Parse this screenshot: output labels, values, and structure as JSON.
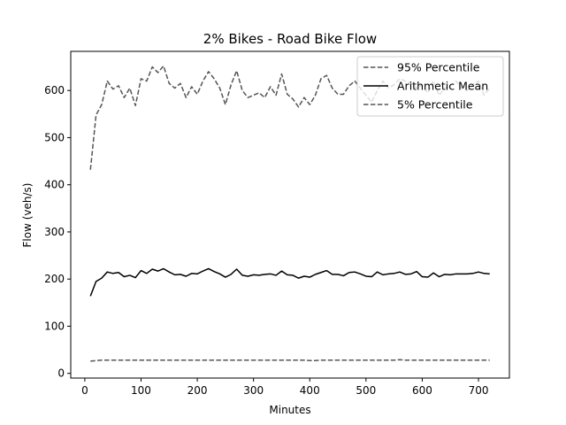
{
  "chart_data": {
    "type": "line",
    "title": "2% Bikes - Road Bike Flow",
    "xlabel": "Minutes",
    "ylabel": "Flow (veh/s)",
    "xlim": [
      -25,
      755
    ],
    "ylim": [
      -10,
      683
    ],
    "xticks": [
      0,
      100,
      200,
      300,
      400,
      500,
      600,
      700
    ],
    "yticks": [
      0,
      100,
      200,
      300,
      400,
      500,
      600
    ],
    "legend_position": "top-right",
    "x": [
      10,
      20,
      30,
      40,
      50,
      60,
      70,
      80,
      90,
      100,
      110,
      120,
      130,
      140,
      150,
      160,
      170,
      180,
      190,
      200,
      210,
      220,
      230,
      240,
      250,
      260,
      270,
      280,
      290,
      300,
      310,
      320,
      330,
      340,
      350,
      360,
      370,
      380,
      390,
      400,
      410,
      420,
      430,
      440,
      450,
      460,
      470,
      480,
      490,
      500,
      510,
      520,
      530,
      540,
      550,
      560,
      570,
      580,
      590,
      600,
      610,
      620,
      630,
      640,
      650,
      660,
      670,
      680,
      690,
      700,
      710,
      720
    ],
    "series": [
      {
        "name": "95% Percentile",
        "color": "#555555",
        "style": "dashed",
        "values": [
          432,
          548,
          570,
          620,
          603,
          610,
          585,
          605,
          568,
          625,
          620,
          650,
          638,
          652,
          615,
          605,
          615,
          585,
          608,
          592,
          620,
          640,
          625,
          605,
          570,
          612,
          642,
          600,
          585,
          590,
          595,
          585,
          608,
          590,
          635,
          592,
          582,
          565,
          585,
          570,
          590,
          625,
          632,
          605,
          592,
          592,
          610,
          620,
          605,
          590,
          575,
          600,
          620,
          605,
          612,
          625,
          620,
          615,
          605,
          612,
          595,
          620,
          590,
          605,
          610,
          620,
          605,
          600,
          612,
          620,
          590,
          605
        ]
      },
      {
        "name": "Arithmetic Mean",
        "color": "#000000",
        "style": "solid",
        "values": [
          164,
          195,
          202,
          215,
          212,
          214,
          205,
          208,
          203,
          218,
          212,
          221,
          217,
          222,
          215,
          209,
          210,
          206,
          212,
          211,
          217,
          222,
          216,
          211,
          204,
          210,
          221,
          208,
          206,
          209,
          208,
          210,
          211,
          208,
          217,
          209,
          208,
          202,
          206,
          204,
          210,
          214,
          218,
          210,
          210,
          207,
          214,
          215,
          211,
          206,
          205,
          215,
          209,
          211,
          212,
          215,
          210,
          211,
          216,
          205,
          204,
          213,
          205,
          210,
          209,
          211,
          211,
          211,
          212,
          215,
          212,
          211
        ]
      },
      {
        "name": "5% Percentile",
        "color": "#555555",
        "style": "dashed",
        "values": [
          26,
          27,
          28,
          28,
          28,
          28,
          28,
          28,
          28,
          28,
          28,
          28,
          28,
          28,
          28,
          28,
          28,
          28,
          28,
          28,
          28,
          28,
          28,
          28,
          28,
          28,
          28,
          28,
          28,
          28,
          28,
          28,
          28,
          28,
          28,
          28,
          28,
          28,
          28,
          27,
          27,
          28,
          28,
          28,
          28,
          28,
          28,
          28,
          28,
          28,
          28,
          28,
          28,
          28,
          28,
          29,
          28,
          28,
          28,
          28,
          28,
          28,
          28,
          28,
          28,
          28,
          28,
          28,
          28,
          28,
          28,
          28
        ]
      }
    ]
  }
}
